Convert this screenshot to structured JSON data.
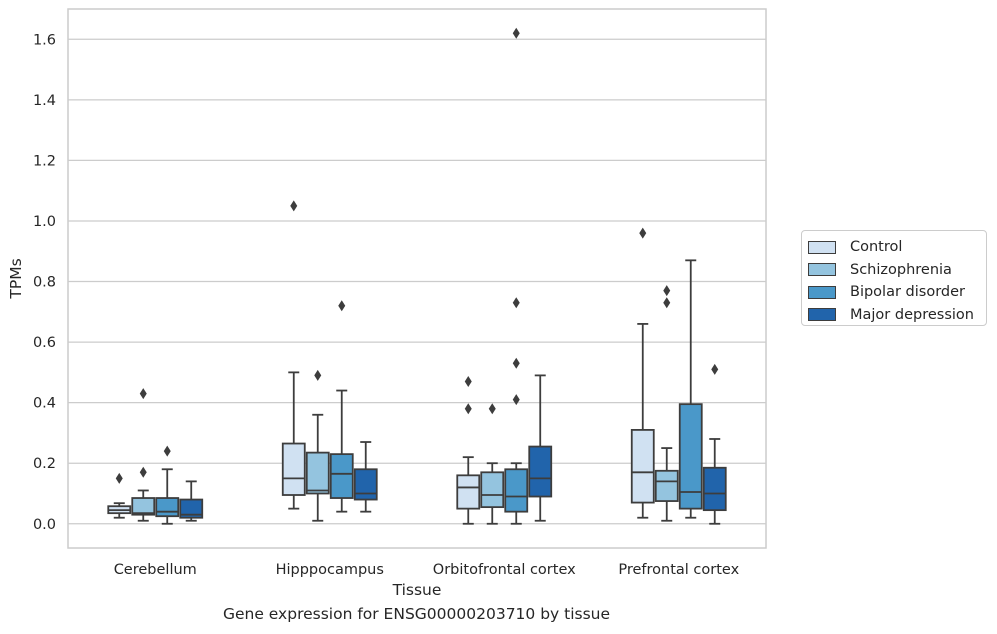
{
  "chart_data": {
    "type": "box",
    "title": "",
    "caption": "Gene expression for ENSG00000203710 by tissue",
    "xlabel": "Tissue",
    "ylabel": "TPMs",
    "ylim": [
      -0.08,
      1.7
    ],
    "yticks": [
      0.0,
      0.2,
      0.4,
      0.6,
      0.8,
      1.0,
      1.2,
      1.4,
      1.6
    ],
    "ytick_labels": [
      "0.0",
      "0.2",
      "0.4",
      "0.6",
      "0.8",
      "1.0",
      "1.2",
      "1.4",
      "1.6"
    ],
    "grid": "horizontal",
    "legend_position": "right-outside",
    "categories": [
      "Cerebellum",
      "Hipppocampus",
      "Orbitofrontal cortex",
      "Prefrontal cortex"
    ],
    "series": [
      {
        "name": "Control",
        "color": "#d0e1f2",
        "boxes": [
          {
            "whislo": 0.02,
            "q1": 0.035,
            "med": 0.045,
            "q3": 0.058,
            "whishi": 0.068,
            "fliers": [
              0.15
            ]
          },
          {
            "whislo": 0.05,
            "q1": 0.095,
            "med": 0.15,
            "q3": 0.265,
            "whishi": 0.5,
            "fliers": [
              1.05
            ]
          },
          {
            "whislo": 0.0,
            "q1": 0.05,
            "med": 0.12,
            "q3": 0.16,
            "whishi": 0.22,
            "fliers": [
              0.38,
              0.47
            ]
          },
          {
            "whislo": 0.02,
            "q1": 0.07,
            "med": 0.17,
            "q3": 0.31,
            "whishi": 0.66,
            "fliers": [
              0.96
            ]
          }
        ]
      },
      {
        "name": "Schizophrenia",
        "color": "#94c4df",
        "boxes": [
          {
            "whislo": 0.01,
            "q1": 0.03,
            "med": 0.035,
            "q3": 0.085,
            "whishi": 0.11,
            "fliers": [
              0.17,
              0.43
            ]
          },
          {
            "whislo": 0.01,
            "q1": 0.1,
            "med": 0.11,
            "q3": 0.235,
            "whishi": 0.36,
            "fliers": [
              0.49
            ]
          },
          {
            "whislo": 0.0,
            "q1": 0.055,
            "med": 0.095,
            "q3": 0.17,
            "whishi": 0.2,
            "fliers": [
              0.38
            ]
          },
          {
            "whislo": 0.01,
            "q1": 0.075,
            "med": 0.14,
            "q3": 0.175,
            "whishi": 0.25,
            "fliers": [
              0.73,
              0.77
            ]
          }
        ]
      },
      {
        "name": "Bipolar disorder",
        "color": "#4a98c9",
        "boxes": [
          {
            "whislo": 0.0,
            "q1": 0.025,
            "med": 0.04,
            "q3": 0.085,
            "whishi": 0.18,
            "fliers": [
              0.24
            ]
          },
          {
            "whislo": 0.04,
            "q1": 0.085,
            "med": 0.165,
            "q3": 0.23,
            "whishi": 0.44,
            "fliers": [
              0.72
            ]
          },
          {
            "whislo": 0.0,
            "q1": 0.04,
            "med": 0.09,
            "q3": 0.18,
            "whishi": 0.2,
            "fliers": [
              0.41,
              0.53,
              0.73,
              1.62
            ]
          },
          {
            "whislo": 0.02,
            "q1": 0.05,
            "med": 0.105,
            "q3": 0.395,
            "whishi": 0.87,
            "fliers": []
          }
        ]
      },
      {
        "name": "Major depression",
        "color": "#2164ab",
        "boxes": [
          {
            "whislo": 0.01,
            "q1": 0.02,
            "med": 0.03,
            "q3": 0.08,
            "whishi": 0.14,
            "fliers": []
          },
          {
            "whislo": 0.04,
            "q1": 0.08,
            "med": 0.1,
            "q3": 0.18,
            "whishi": 0.27,
            "fliers": []
          },
          {
            "whislo": 0.01,
            "q1": 0.09,
            "med": 0.15,
            "q3": 0.255,
            "whishi": 0.49,
            "fliers": []
          },
          {
            "whislo": 0.0,
            "q1": 0.045,
            "med": 0.1,
            "q3": 0.185,
            "whishi": 0.28,
            "fliers": [
              0.51
            ]
          }
        ]
      }
    ]
  }
}
